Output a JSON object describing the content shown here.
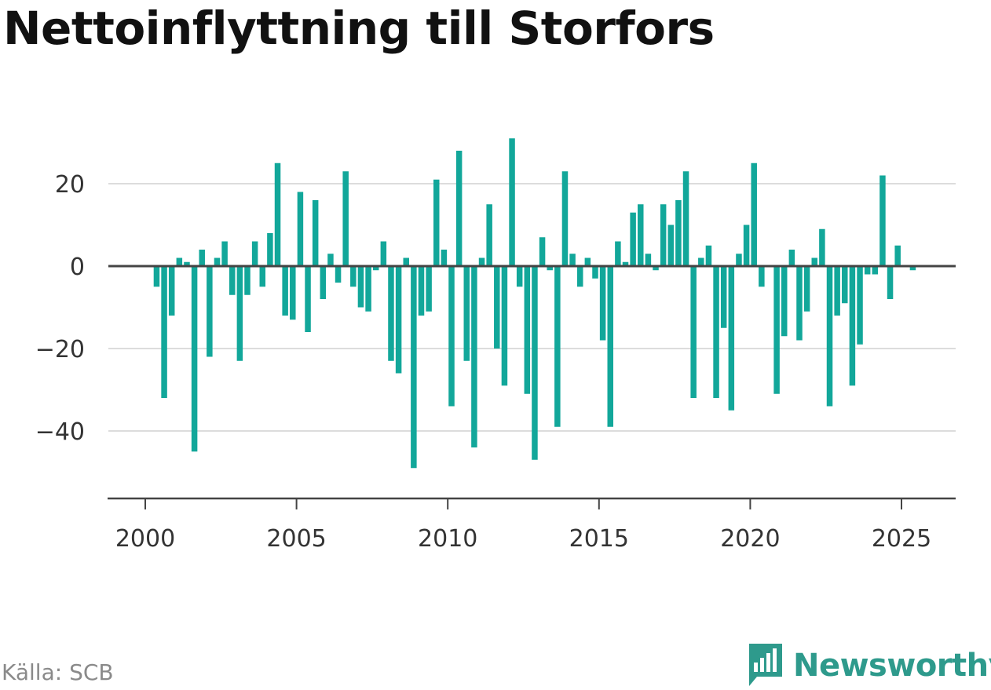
{
  "title": "Nettoinflyttning till Storfors",
  "source": "Källa: SCB",
  "brand": {
    "name": "Newsworthy",
    "logo_icon": "bar-chart-speech-bubble-icon",
    "color": "#2e9a8c"
  },
  "chart_data": {
    "type": "bar",
    "title": "Nettoinflyttning till Storfors",
    "xlabel": "",
    "ylabel": "",
    "bar_color": "#12a79a",
    "grid": true,
    "x_ticks": [
      2000,
      2005,
      2010,
      2015,
      2020,
      2025
    ],
    "y_ticks": [
      -40,
      -20,
      0,
      20
    ],
    "y_tick_labels": [
      "−40",
      "−20",
      "0",
      "20"
    ],
    "xlim": [
      1999.6,
      2026.8
    ],
    "ylim": [
      -56,
      35
    ],
    "x_start": 2000.375,
    "x_step": 0.25,
    "values": [
      -5,
      -32,
      -12,
      2,
      1,
      -45,
      4,
      -22,
      2,
      6,
      -7,
      -23,
      -7,
      6,
      -5,
      8,
      25,
      -12,
      -13,
      18,
      -16,
      16,
      -8,
      3,
      -4,
      23,
      -5,
      -10,
      -11,
      -1,
      6,
      -23,
      -26,
      2,
      -49,
      -12,
      -11,
      21,
      4,
      -34,
      28,
      -23,
      -44,
      2,
      15,
      -20,
      -29,
      31,
      -5,
      -31,
      -47,
      7,
      -1,
      -39,
      23,
      3,
      -5,
      2,
      -3,
      -18,
      -39,
      6,
      1,
      13,
      15,
      3,
      -1,
      15,
      10,
      16,
      23,
      -32,
      2,
      5,
      -32,
      -15,
      -35,
      3,
      10,
      25,
      -5,
      0,
      -31,
      -17,
      4,
      -18,
      -11,
      2,
      9,
      -34,
      -12,
      -9,
      -29,
      -19,
      -2,
      -2,
      22,
      -8,
      5,
      0,
      -1
    ]
  }
}
